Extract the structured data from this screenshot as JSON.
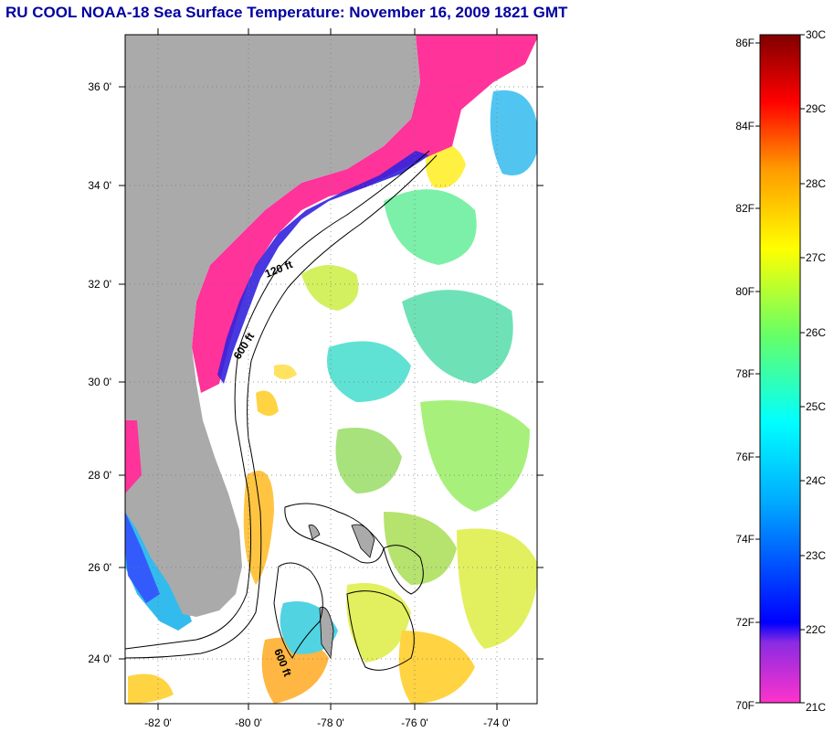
{
  "title": "RU COOL  NOAA-18  Sea Surface Temperature:  November 16, 2009 1821 GMT",
  "lat_labels": [
    "36 0'",
    "34 0'",
    "32 0'",
    "30 0'",
    "28 0'",
    "26 0'",
    "24 0'"
  ],
  "lon_labels": [
    "-82 0'",
    "-80 0'",
    "-78 0'",
    "-76 0'",
    "-74 0'"
  ],
  "depth_labels": [
    "120 ft",
    "600 ft",
    "600 ft"
  ],
  "colorbar": {
    "fahrenheit_labels": [
      "86F",
      "84F",
      "82F",
      "80F",
      "78F",
      "76F",
      "74F",
      "72F",
      "70F"
    ],
    "celsius_labels": [
      "30C",
      "29C",
      "28C",
      "27C",
      "26C",
      "25C",
      "24C",
      "23C",
      "22C",
      "21C"
    ]
  },
  "colors": {
    "land": "#aaaaaa",
    "cold": "#ff3399",
    "title": "#0000a0"
  }
}
